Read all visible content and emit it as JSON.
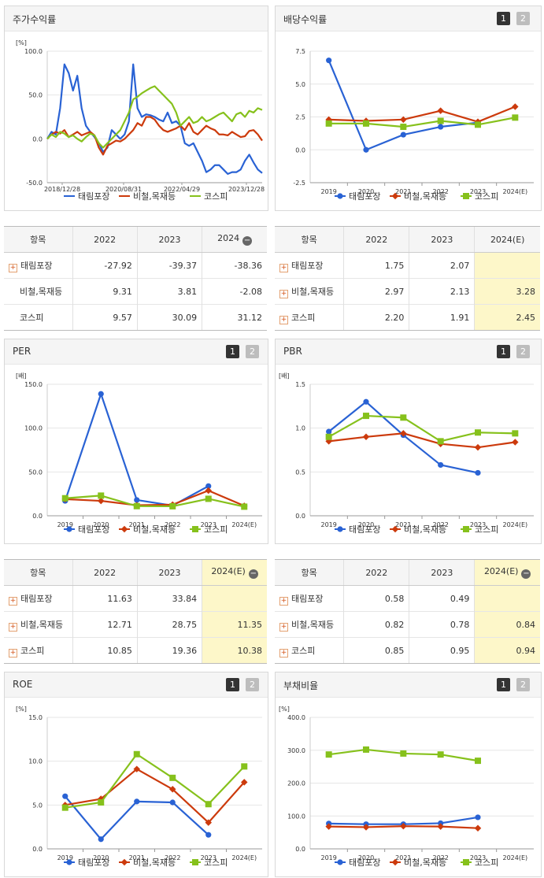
{
  "colors": {
    "blue": "#2962d4",
    "red": "#cc3a0c",
    "green": "#86c11c"
  },
  "legend": [
    "태림포장",
    "비철,목재등",
    "코스피"
  ],
  "panels": {
    "stock": {
      "title": "주가수익률"
    },
    "div": {
      "title": "배당수익률"
    },
    "per": {
      "title": "PER"
    },
    "pbr": {
      "title": "PBR"
    },
    "roe": {
      "title": "ROE"
    },
    "debt": {
      "title": "부채비율"
    }
  },
  "pager": {
    "one": "1",
    "two": "2"
  },
  "chart_data": [
    {
      "id": "stock",
      "type": "line",
      "unit": "[%]",
      "ylim": [
        -50,
        100
      ],
      "yticks": [
        "100.0",
        "50.0",
        "0.0",
        "-50.0"
      ],
      "xlabels": [
        "2018/12/28",
        "2020/08/31",
        "2022/04/29",
        "2023/12/28"
      ],
      "series": [
        {
          "name": "태림포장",
          "color": "#2962d4",
          "values": [
            0,
            8,
            5,
            35,
            85,
            75,
            55,
            72,
            35,
            15,
            8,
            2,
            -5,
            -15,
            -10,
            10,
            5,
            0,
            5,
            20,
            85,
            35,
            25,
            28,
            27,
            25,
            22,
            20,
            30,
            18,
            20,
            15,
            -5,
            -8,
            -5,
            -15,
            -25,
            -38,
            -35,
            -30,
            -30,
            -35,
            -40,
            -38,
            -38,
            -35,
            -25,
            -18,
            -27,
            -35,
            -39
          ]
        },
        {
          "name": "비철,목재등",
          "color": "#cc3a0c",
          "values": [
            0,
            5,
            8,
            6,
            10,
            2,
            5,
            8,
            4,
            6,
            8,
            4,
            -10,
            -18,
            -8,
            -5,
            -2,
            -3,
            0,
            5,
            10,
            18,
            15,
            25,
            25,
            22,
            15,
            10,
            8,
            10,
            12,
            15,
            10,
            18,
            8,
            5,
            10,
            15,
            12,
            10,
            5,
            5,
            4,
            8,
            5,
            2,
            3,
            9,
            10,
            5,
            -2
          ]
        },
        {
          "name": "코스피",
          "color": "#86c11c",
          "values": [
            0,
            5,
            2,
            8,
            6,
            2,
            4,
            0,
            -3,
            2,
            6,
            4,
            -5,
            -10,
            -5,
            0,
            5,
            10,
            20,
            30,
            45,
            48,
            52,
            55,
            58,
            60,
            55,
            50,
            45,
            40,
            30,
            15,
            20,
            25,
            18,
            20,
            25,
            20,
            22,
            25,
            28,
            30,
            25,
            20,
            28,
            30,
            25,
            32,
            30,
            35,
            33
          ]
        }
      ]
    },
    {
      "id": "div",
      "type": "line",
      "ylim": [
        -2.5,
        7.5
      ],
      "yticks": [
        "7.5",
        "5.0",
        "2.5",
        "0.0",
        "-2.5"
      ],
      "categories": [
        "2019",
        "2020",
        "2021",
        "2022",
        "2023",
        "2024(E)"
      ],
      "series": [
        {
          "name": "태림포장",
          "color": "#2962d4",
          "values": [
            6.8,
            0.0,
            1.15,
            1.75,
            2.07,
            null
          ]
        },
        {
          "name": "비철,목재등",
          "color": "#cc3a0c",
          "values": [
            2.3,
            2.2,
            2.3,
            2.97,
            2.13,
            3.28
          ]
        },
        {
          "name": "코스피",
          "color": "#86c11c",
          "values": [
            2.0,
            2.0,
            1.75,
            2.2,
            1.91,
            2.45
          ]
        }
      ]
    },
    {
      "id": "per",
      "type": "line",
      "unit": "[배]",
      "ylim": [
        0,
        150
      ],
      "yticks": [
        "150.0",
        "100.0",
        "50.0",
        "0.0"
      ],
      "categories": [
        "2019",
        "2020",
        "2021",
        "2022",
        "2023",
        "2024(E)"
      ],
      "series": [
        {
          "name": "태림포장",
          "color": "#2962d4",
          "values": [
            17,
            139,
            18,
            11.63,
            33.84,
            null
          ]
        },
        {
          "name": "비철,목재등",
          "color": "#cc3a0c",
          "values": [
            19,
            17,
            12,
            12.71,
            28.75,
            11.35
          ]
        },
        {
          "name": "코스피",
          "color": "#86c11c",
          "values": [
            20,
            23,
            11,
            10.85,
            19.36,
            10.38
          ]
        }
      ]
    },
    {
      "id": "pbr",
      "type": "line",
      "unit": "[배]",
      "ylim": [
        0,
        1.5
      ],
      "yticks": [
        "1.5",
        "1.0",
        "0.5",
        "0.0"
      ],
      "categories": [
        "2019",
        "2020",
        "2021",
        "2022",
        "2023",
        "2024(E)"
      ],
      "series": [
        {
          "name": "태림포장",
          "color": "#2962d4",
          "values": [
            0.96,
            1.3,
            0.92,
            0.58,
            0.49,
            null
          ]
        },
        {
          "name": "비철,목재등",
          "color": "#cc3a0c",
          "values": [
            0.85,
            0.9,
            0.94,
            0.82,
            0.78,
            0.84
          ]
        },
        {
          "name": "코스피",
          "color": "#86c11c",
          "values": [
            0.9,
            1.14,
            1.12,
            0.85,
            0.95,
            0.94
          ]
        }
      ]
    },
    {
      "id": "roe",
      "type": "line",
      "unit": "[%]",
      "ylim": [
        0,
        15
      ],
      "yticks": [
        "15.0",
        "10.0",
        "5.0",
        "0.0"
      ],
      "categories": [
        "2019",
        "2020",
        "2021",
        "2022",
        "2023",
        "2024(E)"
      ],
      "series": [
        {
          "name": "태림포장",
          "color": "#2962d4",
          "values": [
            6.0,
            1.1,
            5.4,
            5.3,
            1.6,
            null
          ]
        },
        {
          "name": "비철,목재등",
          "color": "#cc3a0c",
          "values": [
            5.0,
            5.7,
            9.1,
            6.8,
            3.0,
            7.6
          ]
        },
        {
          "name": "코스피",
          "color": "#86c11c",
          "values": [
            4.7,
            5.3,
            10.8,
            8.1,
            5.1,
            9.4
          ]
        }
      ]
    },
    {
      "id": "debt",
      "type": "line",
      "unit": "[%]",
      "ylim": [
        0,
        400
      ],
      "yticks": [
        "400.0",
        "300.0",
        "200.0",
        "100.0",
        "0.0"
      ],
      "categories": [
        "2019",
        "2020",
        "2021",
        "2022",
        "2023",
        "2024(E)"
      ],
      "series": [
        {
          "name": "태림포장",
          "color": "#2962d4",
          "values": [
            77,
            75,
            75,
            78,
            96,
            null
          ]
        },
        {
          "name": "비철,목재등",
          "color": "#cc3a0c",
          "values": [
            68,
            66,
            69,
            68,
            63,
            null
          ]
        },
        {
          "name": "코스피",
          "color": "#86c11c",
          "values": [
            287,
            302,
            290,
            287,
            268,
            null
          ]
        }
      ]
    }
  ],
  "tables": {
    "stock": {
      "headers": [
        "항목",
        "2022",
        "2023",
        "2024"
      ],
      "rows": [
        {
          "label": "태림포장",
          "plus": true,
          "v": [
            "-27.92",
            "-39.37",
            "-38.36"
          ]
        },
        {
          "label": "비철,목재등",
          "plus": false,
          "v": [
            "9.31",
            "3.81",
            "-2.08"
          ]
        },
        {
          "label": "코스피",
          "plus": false,
          "v": [
            "9.57",
            "30.09",
            "31.12"
          ]
        }
      ]
    },
    "div": {
      "headers": [
        "항목",
        "2022",
        "2023",
        "2024(E)"
      ],
      "rows": [
        {
          "label": "태림포장",
          "plus": true,
          "v": [
            "1.75",
            "2.07",
            ""
          ]
        },
        {
          "label": "비철,목재등",
          "plus": true,
          "v": [
            "2.97",
            "2.13",
            "3.28"
          ]
        },
        {
          "label": "코스피",
          "plus": true,
          "v": [
            "2.20",
            "1.91",
            "2.45"
          ]
        }
      ]
    },
    "per": {
      "headers": [
        "항목",
        "2022",
        "2023",
        "2024(E)"
      ],
      "rows": [
        {
          "label": "태림포장",
          "plus": true,
          "v": [
            "11.63",
            "33.84",
            ""
          ]
        },
        {
          "label": "비철,목재등",
          "plus": true,
          "v": [
            "12.71",
            "28.75",
            "11.35"
          ]
        },
        {
          "label": "코스피",
          "plus": true,
          "v": [
            "10.85",
            "19.36",
            "10.38"
          ]
        }
      ]
    },
    "pbr": {
      "headers": [
        "항목",
        "2022",
        "2023",
        "2024(E)"
      ],
      "rows": [
        {
          "label": "태림포장",
          "plus": true,
          "v": [
            "0.58",
            "0.49",
            ""
          ]
        },
        {
          "label": "비철,목재등",
          "plus": true,
          "v": [
            "0.82",
            "0.78",
            "0.84"
          ]
        },
        {
          "label": "코스피",
          "plus": true,
          "v": [
            "0.85",
            "0.95",
            "0.94"
          ]
        }
      ]
    }
  }
}
